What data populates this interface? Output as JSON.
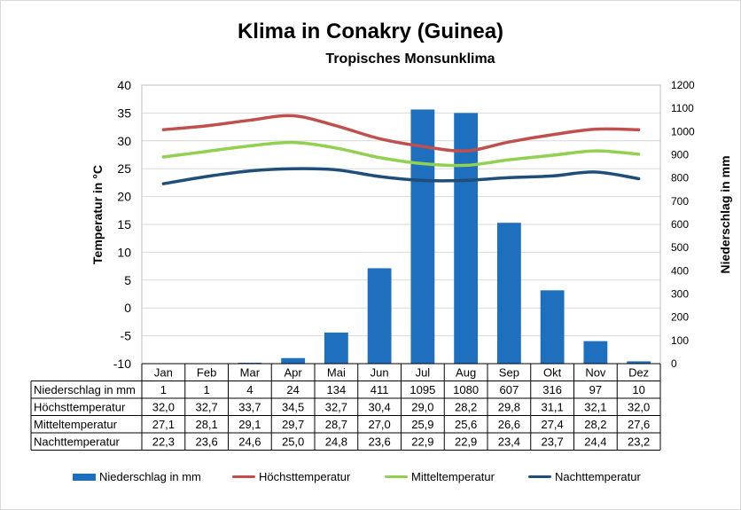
{
  "title": "Klima in Conakry (Guinea)",
  "subtitle": "Tropisches Monsunklima",
  "colors": {
    "bars": "#1f6fbf",
    "hoechst": "#c0504d",
    "mittel": "#92d050",
    "nacht": "#1f4e79"
  },
  "chart_data": {
    "type": "bar",
    "ylabel_left": "Temperatur in °C",
    "ylabel_right": "Niederschlag in mm",
    "ylim_left": [
      -10,
      40
    ],
    "ylim_right": [
      0,
      1200
    ],
    "yticks_left": [
      "40",
      "35",
      "30",
      "25",
      "20",
      "15",
      "10",
      "5",
      "0",
      "-5",
      "-10"
    ],
    "yticks_right": [
      "1200",
      "1100",
      "1000",
      "900",
      "800",
      "700",
      "600",
      "500",
      "400",
      "300",
      "200",
      "100",
      "0"
    ],
    "grid": true,
    "legend_position": "bottom",
    "categories": [
      "Jan",
      "Feb",
      "Mar",
      "Apr",
      "Mai",
      "Jun",
      "Jul",
      "Aug",
      "Sep",
      "Okt",
      "Nov",
      "Dez"
    ],
    "series": [
      {
        "name": "Niederschlag in mm",
        "type": "bar",
        "axis": "right",
        "values": [
          1,
          1,
          4,
          24,
          134,
          411,
          1095,
          1080,
          607,
          316,
          97,
          10
        ],
        "labels": [
          "1",
          "1",
          "4",
          "24",
          "134",
          "411",
          "1095",
          "1080",
          "607",
          "316",
          "97",
          "10"
        ]
      },
      {
        "name": "Höchsttemperatur",
        "type": "line",
        "axis": "left",
        "values": [
          32.0,
          32.7,
          33.7,
          34.5,
          32.7,
          30.4,
          29.0,
          28.2,
          29.8,
          31.1,
          32.1,
          32.0
        ],
        "labels": [
          "32,0",
          "32,7",
          "33,7",
          "34,5",
          "32,7",
          "30,4",
          "29,0",
          "28,2",
          "29,8",
          "31,1",
          "32,1",
          "32,0"
        ]
      },
      {
        "name": "Mitteltemperatur",
        "type": "line",
        "axis": "left",
        "values": [
          27.1,
          28.1,
          29.1,
          29.7,
          28.7,
          27.0,
          25.9,
          25.6,
          26.6,
          27.4,
          28.2,
          27.6
        ],
        "labels": [
          "27,1",
          "28,1",
          "29,1",
          "29,7",
          "28,7",
          "27,0",
          "25,9",
          "25,6",
          "26,6",
          "27,4",
          "28,2",
          "27,6"
        ]
      },
      {
        "name": "Nachttemperatur",
        "type": "line",
        "axis": "left",
        "values": [
          22.3,
          23.6,
          24.6,
          25.0,
          24.8,
          23.6,
          22.9,
          22.9,
          23.4,
          23.7,
          24.4,
          23.2
        ],
        "labels": [
          "22,3",
          "23,6",
          "24,6",
          "25,0",
          "24,8",
          "23,6",
          "22,9",
          "22,9",
          "23,4",
          "23,7",
          "24,4",
          "23,2"
        ]
      }
    ]
  }
}
